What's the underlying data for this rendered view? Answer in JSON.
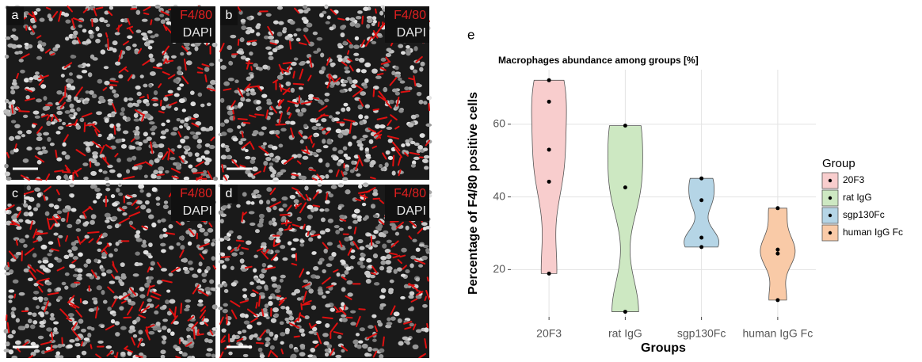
{
  "panels": [
    {
      "letter": "a",
      "stain1": "F4/80",
      "stain2": "DAPI"
    },
    {
      "letter": "b",
      "stain1": "F4/80",
      "stain2": "DAPI"
    },
    {
      "letter": "c",
      "stain1": "F4/80",
      "stain2": "DAPI"
    },
    {
      "letter": "d",
      "stain1": "F4/80",
      "stain2": "DAPI"
    }
  ],
  "chart_data": {
    "type": "violin",
    "panel_label": "e",
    "title": "Macrophages abundance among groups [%]",
    "x_label": "Groups",
    "y_label": "Percentage of F4/80 positive cells",
    "legend_title": "Group",
    "legend": "right",
    "grid": true,
    "categories": [
      "20F3",
      "rat IgG",
      "sgp130Fc",
      "human IgG Fc"
    ],
    "series": [
      {
        "name": "20F3",
        "color": "#f8cdcd",
        "values": [
          72.1,
          66.2,
          53.0,
          44.2,
          18.9
        ]
      },
      {
        "name": "rat IgG",
        "color": "#cde8c2",
        "values": [
          59.6,
          42.6,
          8.4
        ]
      },
      {
        "name": "sgp130Fc",
        "color": "#b5d5e6",
        "values": [
          45.1,
          39.1,
          28.8,
          26.2
        ]
      },
      {
        "name": "human IgG Fc",
        "color": "#f9caa7",
        "values": [
          36.9,
          25.5,
          24.4,
          11.6
        ]
      }
    ],
    "ylim": [
      7,
      75
    ],
    "yticks": [
      20,
      40,
      60
    ]
  }
}
